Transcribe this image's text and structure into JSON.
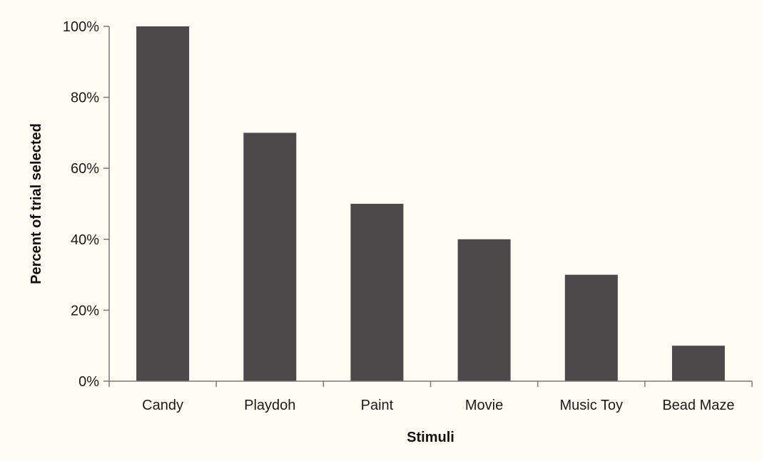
{
  "chart_data": {
    "type": "bar",
    "categories": [
      "Candy",
      "Playdoh",
      "Paint",
      "Movie",
      "Music Toy",
      "Bead Maze"
    ],
    "values": [
      100,
      70,
      50,
      40,
      30,
      10
    ],
    "title": "",
    "xlabel": "Stimuli",
    "ylabel": "Percent of trial selected",
    "ylim": [
      0,
      100
    ],
    "yticks": [
      0,
      20,
      40,
      60,
      80,
      100
    ],
    "ytick_labels": [
      "0%",
      "20%",
      "40%",
      "60%",
      "80%",
      "100%"
    ],
    "grid": false,
    "legend": "none",
    "colors": {
      "bar": "#4d494b",
      "axis": "#7a7a7a",
      "background": "#fefcf3"
    }
  }
}
